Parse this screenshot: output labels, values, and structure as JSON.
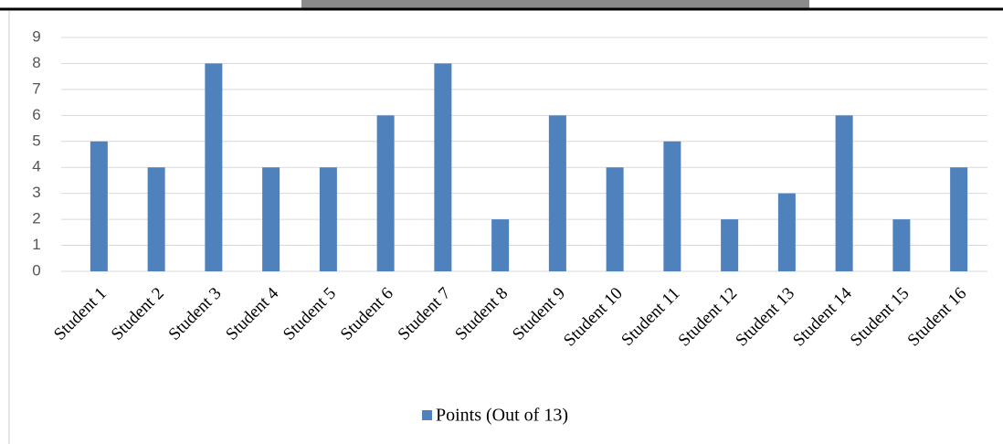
{
  "chart_data": {
    "type": "bar",
    "categories": [
      "Student 1",
      "Student 2",
      "Student 3",
      "Student 4",
      "Student 5",
      "Student 6",
      "Student 7",
      "Student 8",
      "Student 9",
      "Student 10",
      "Student 11",
      "Student 12",
      "Student 13",
      "Student 14",
      "Student 15",
      "Student 16"
    ],
    "series": [
      {
        "name": "Points (Out of 13)",
        "color": "#4f81bd",
        "values": [
          5,
          4,
          8,
          4,
          4,
          6,
          8,
          2,
          6,
          4,
          5,
          2,
          3,
          6,
          2,
          4
        ]
      }
    ],
    "ylim": [
      0,
      9
    ],
    "yticks": [
      0,
      1,
      2,
      3,
      4,
      5,
      6,
      7,
      8,
      9
    ],
    "grid": true,
    "legend": "bottom"
  }
}
